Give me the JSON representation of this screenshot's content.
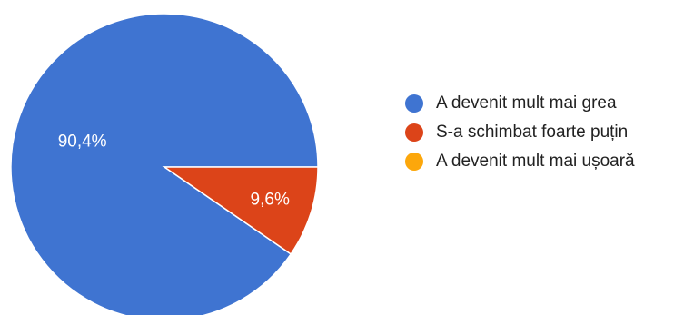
{
  "chart_data": {
    "type": "pie",
    "categories": [
      "A devenit mult mai grea",
      "S-a schimbat foarte puțin",
      "A devenit mult mai ușoară"
    ],
    "values": [
      90.4,
      9.6,
      0
    ],
    "data_labels": [
      "90,4%",
      "9,6%",
      ""
    ],
    "colors": [
      "#3f74d1",
      "#dc4419",
      "#fca70b"
    ],
    "start_angle_deg": 0,
    "direction": "counterclockwise",
    "legend_position": "right"
  }
}
